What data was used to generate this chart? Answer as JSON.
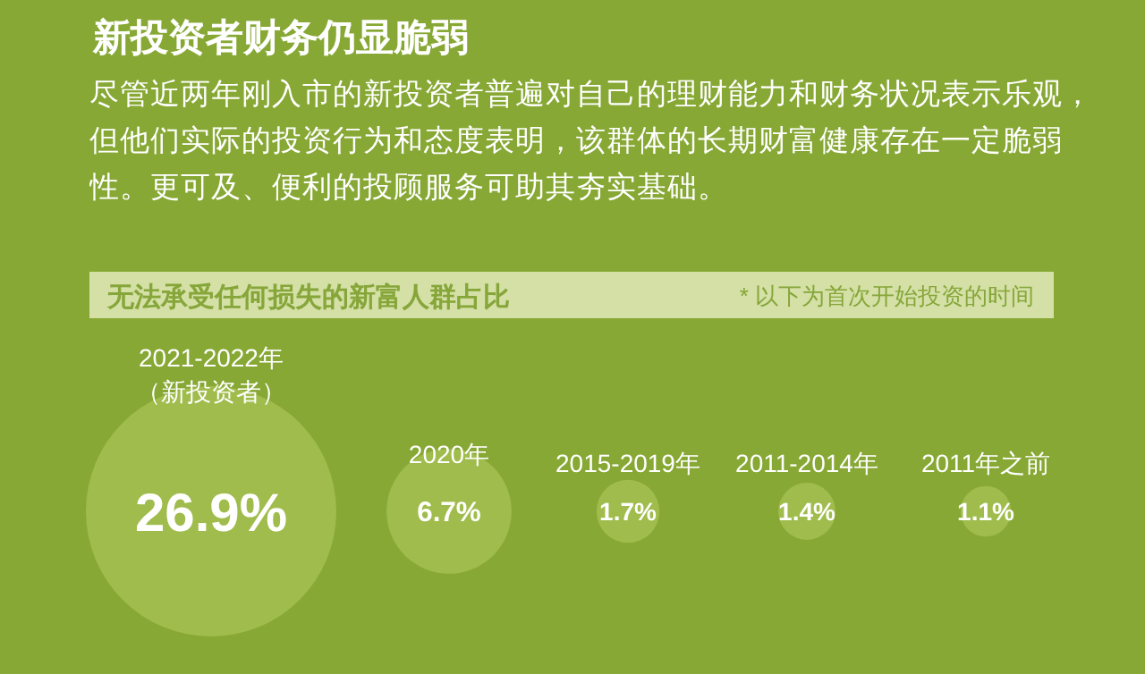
{
  "chart_data": {
    "type": "other",
    "title": "新投资者财务仍显脆弱",
    "subtitle": "尽管近两年刚入市的新投资者普遍对自己的理财能力和财务状况表示乐观，但他们实际的投资行为和态度表明，该群体的长期财富健康存在一定脆弱性。更可及、便利的投顾服务可助其夯实基础。",
    "annotations": [
      "无法承受任何损失的新富人群占比",
      "* 以下为首次开始投资的时间"
    ],
    "categories": [
      "2021-2022年（新投资者）",
      "2020年",
      "2015-2019年",
      "2011-2014年",
      "2011年之前"
    ],
    "values": [
      26.9,
      6.7,
      1.7,
      1.4,
      1.1
    ],
    "value_labels": [
      "26.9%",
      "6.7%",
      "1.7%",
      "1.4%",
      "1.1%"
    ],
    "color": "#a0bc4c"
  }
}
